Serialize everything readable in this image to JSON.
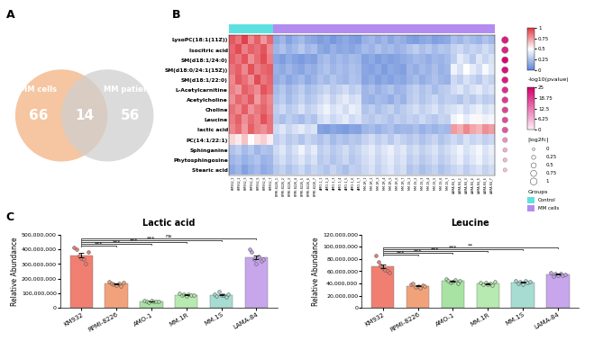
{
  "chart_data": [
    {
      "type": "venn",
      "annotations": [
        "A"
      ],
      "sets": [
        {
          "name": "MM cells",
          "value": 66,
          "color": "#f5c39c"
        },
        {
          "name": "MM patients",
          "value": 56,
          "color": "#cfcfcf"
        }
      ],
      "intersection": 14
    },
    {
      "type": "heatmap",
      "annotations": [
        "B"
      ],
      "rows": [
        "LysoPC(18:1(11Z))",
        "Isocitric acid",
        "SM(d18:1/24:0)",
        "SM(d18:0/24:1(15Z))",
        "SM(d18:1/22:0)",
        "L-Acetylcarnitine",
        "Acetylcholine",
        "Choline",
        "Leucine",
        "lactic acid",
        "PC(14:1/22:1)",
        "Sphinganine",
        "Phytosphingosine",
        "Stearic acid"
      ],
      "columns": [
        "KM932_1",
        "KM932_2",
        "KM932_3",
        "KM932_4",
        "KM932_5",
        "KM932_6",
        "KM932_7",
        "RPMI-8226_1",
        "RPMI-8226_2",
        "RPMI-8226_3",
        "RPMI-8226_4",
        "RPMI-8226_5",
        "RPMI-8226_6",
        "RPMI-8226_7",
        "AMO-1_1",
        "AMO-1_2",
        "AMO-1_3",
        "AMO-1_4",
        "AMO-1_5",
        "AMO-1_6",
        "AMO-1_7",
        "MM.1R_1",
        "MM.1R_2",
        "MM.1R_3",
        "MM.1R_4",
        "MM.1R_5",
        "MM.1R_6",
        "MM.1R_7",
        "MM.1S_1",
        "MM.1S_2",
        "MM.1S_3",
        "MM.1S_4",
        "MM.1S_5",
        "MM.1S_6",
        "MM.1S_7",
        "LAMA-84_1",
        "LAMA-84_2",
        "LAMA-84_3",
        "LAMA-84_4",
        "LAMA-84_5",
        "LAMA-84_6",
        "LAMA-84_7"
      ],
      "cells": [
        [
          0.92,
          0.85,
          0.98,
          0.8,
          0.9,
          0.76,
          0.88,
          0.15,
          0.2,
          0.12,
          0.18,
          0.22,
          0.16,
          0.14,
          0.1,
          0.13,
          0.08,
          0.12,
          0.15,
          0.11,
          0.09,
          0.18,
          0.21,
          0.16,
          0.2,
          0.14,
          0.19,
          0.17,
          0.12,
          0.1,
          0.14,
          0.16,
          0.11,
          0.13,
          0.15,
          0.24,
          0.2,
          0.26,
          0.22,
          0.19,
          0.25,
          0.21
        ],
        [
          0.88,
          0.95,
          0.82,
          0.9,
          0.86,
          0.93,
          0.79,
          0.2,
          0.25,
          0.18,
          0.22,
          0.28,
          0.21,
          0.24,
          0.15,
          0.12,
          0.18,
          0.14,
          0.16,
          0.13,
          0.17,
          0.22,
          0.19,
          0.25,
          0.2,
          0.23,
          0.18,
          0.21,
          0.26,
          0.3,
          0.24,
          0.28,
          0.22,
          0.27,
          0.25,
          0.32,
          0.35,
          0.29,
          0.33,
          0.3,
          0.36,
          0.31
        ],
        [
          0.9,
          0.84,
          0.93,
          0.78,
          0.87,
          0.95,
          0.82,
          0.14,
          0.1,
          0.16,
          0.12,
          0.09,
          0.13,
          0.11,
          0.2,
          0.24,
          0.18,
          0.22,
          0.19,
          0.23,
          0.21,
          0.12,
          0.15,
          0.1,
          0.14,
          0.11,
          0.13,
          0.16,
          0.18,
          0.22,
          0.2,
          0.17,
          0.21,
          0.19,
          0.23,
          0.3,
          0.42,
          0.36,
          0.28,
          0.4,
          0.33,
          0.38
        ],
        [
          0.85,
          0.9,
          0.8,
          0.94,
          0.83,
          0.88,
          0.91,
          0.18,
          0.15,
          0.2,
          0.16,
          0.13,
          0.19,
          0.17,
          0.22,
          0.26,
          0.2,
          0.24,
          0.21,
          0.25,
          0.23,
          0.14,
          0.12,
          0.16,
          0.1,
          0.15,
          0.13,
          0.11,
          0.2,
          0.17,
          0.22,
          0.19,
          0.24,
          0.18,
          0.21,
          0.45,
          0.38,
          0.5,
          0.42,
          0.36,
          0.48,
          0.4
        ],
        [
          0.8,
          0.92,
          0.86,
          0.78,
          0.95,
          0.84,
          0.89,
          0.16,
          0.2,
          0.14,
          0.18,
          0.22,
          0.15,
          0.19,
          0.25,
          0.21,
          0.27,
          0.23,
          0.2,
          0.26,
          0.24,
          0.13,
          0.17,
          0.11,
          0.15,
          0.12,
          0.16,
          0.14,
          0.19,
          0.23,
          0.17,
          0.21,
          0.25,
          0.2,
          0.18,
          0.35,
          0.3,
          0.38,
          0.33,
          0.28,
          0.36,
          0.32
        ],
        [
          0.82,
          0.76,
          0.9,
          0.85,
          0.79,
          0.93,
          0.87,
          0.22,
          0.27,
          0.2,
          0.25,
          0.3,
          0.23,
          0.26,
          0.3,
          0.34,
          0.28,
          0.32,
          0.36,
          0.29,
          0.33,
          0.2,
          0.24,
          0.18,
          0.22,
          0.26,
          0.19,
          0.21,
          0.27,
          0.31,
          0.25,
          0.29,
          0.23,
          0.28,
          0.3,
          0.36,
          0.4,
          0.33,
          0.38,
          0.42,
          0.35,
          0.39
        ],
        [
          0.78,
          0.88,
          0.83,
          0.92,
          0.75,
          0.86,
          0.8,
          0.25,
          0.3,
          0.22,
          0.28,
          0.33,
          0.26,
          0.29,
          0.35,
          0.4,
          0.32,
          0.38,
          0.42,
          0.36,
          0.39,
          0.2,
          0.18,
          0.23,
          0.21,
          0.17,
          0.24,
          0.19,
          0.28,
          0.32,
          0.26,
          0.3,
          0.34,
          0.27,
          0.31,
          0.3,
          0.26,
          0.33,
          0.28,
          0.35,
          0.29,
          0.32
        ],
        [
          0.86,
          0.8,
          0.91,
          0.77,
          0.84,
          0.89,
          0.82,
          0.3,
          0.35,
          0.28,
          0.32,
          0.38,
          0.31,
          0.34,
          0.4,
          0.45,
          0.38,
          0.42,
          0.36,
          0.44,
          0.41,
          0.26,
          0.3,
          0.24,
          0.28,
          0.32,
          0.25,
          0.29,
          0.33,
          0.37,
          0.31,
          0.35,
          0.39,
          0.32,
          0.36,
          0.38,
          0.42,
          0.35,
          0.4,
          0.44,
          0.37,
          0.41
        ],
        [
          0.83,
          0.9,
          0.78,
          0.87,
          0.81,
          0.94,
          0.85,
          0.28,
          0.24,
          0.3,
          0.26,
          0.22,
          0.29,
          0.25,
          0.36,
          0.4,
          0.34,
          0.38,
          0.42,
          0.35,
          0.39,
          0.3,
          0.27,
          0.32,
          0.29,
          0.25,
          0.31,
          0.28,
          0.32,
          0.29,
          0.35,
          0.3,
          0.27,
          0.33,
          0.31,
          0.45,
          0.5,
          0.42,
          0.48,
          0.52,
          0.44,
          0.47
        ],
        [
          0.8,
          0.87,
          0.75,
          0.9,
          0.82,
          0.78,
          0.85,
          0.35,
          0.4,
          0.33,
          0.38,
          0.42,
          0.36,
          0.39,
          0.12,
          0.1,
          0.14,
          0.11,
          0.09,
          0.13,
          0.12,
          0.2,
          0.23,
          0.18,
          0.22,
          0.25,
          0.19,
          0.21,
          0.2,
          0.24,
          0.18,
          0.22,
          0.19,
          0.23,
          0.21,
          0.75,
          0.7,
          0.8,
          0.72,
          0.68,
          0.78,
          0.74
        ],
        [
          0.6,
          0.55,
          0.65,
          0.5,
          0.58,
          0.62,
          0.54,
          0.3,
          0.35,
          0.28,
          0.32,
          0.26,
          0.33,
          0.29,
          0.25,
          0.3,
          0.22,
          0.27,
          0.24,
          0.28,
          0.26,
          0.32,
          0.36,
          0.3,
          0.34,
          0.28,
          0.35,
          0.31,
          0.27,
          0.31,
          0.25,
          0.29,
          0.33,
          0.26,
          0.3,
          0.35,
          0.3,
          0.38,
          0.33,
          0.36,
          0.31,
          0.34
        ],
        [
          0.25,
          0.3,
          0.22,
          0.28,
          0.2,
          0.26,
          0.24,
          0.35,
          0.4,
          0.32,
          0.38,
          0.45,
          0.36,
          0.42,
          0.3,
          0.34,
          0.28,
          0.32,
          0.36,
          0.29,
          0.33,
          0.38,
          0.42,
          0.35,
          0.4,
          0.44,
          0.37,
          0.41,
          0.33,
          0.37,
          0.31,
          0.35,
          0.39,
          0.32,
          0.36,
          0.4,
          0.45,
          0.38,
          0.42,
          0.47,
          0.39,
          0.43
        ],
        [
          0.2,
          0.24,
          0.18,
          0.22,
          0.26,
          0.19,
          0.21,
          0.32,
          0.37,
          0.3,
          0.35,
          0.4,
          0.33,
          0.38,
          0.28,
          0.32,
          0.26,
          0.3,
          0.34,
          0.27,
          0.31,
          0.36,
          0.4,
          0.33,
          0.38,
          0.42,
          0.35,
          0.39,
          0.3,
          0.34,
          0.28,
          0.32,
          0.36,
          0.29,
          0.33,
          0.38,
          0.43,
          0.35,
          0.4,
          0.45,
          0.37,
          0.41
        ],
        [
          0.15,
          0.2,
          0.12,
          0.18,
          0.22,
          0.16,
          0.19,
          0.28,
          0.32,
          0.25,
          0.3,
          0.35,
          0.27,
          0.33,
          0.3,
          0.26,
          0.33,
          0.28,
          0.24,
          0.31,
          0.29,
          0.34,
          0.38,
          0.31,
          0.36,
          0.4,
          0.33,
          0.37,
          0.26,
          0.3,
          0.24,
          0.28,
          0.32,
          0.25,
          0.29,
          0.33,
          0.37,
          0.3,
          0.35,
          0.39,
          0.32,
          0.36
        ]
      ],
      "cell_range": [
        0,
        1
      ],
      "cell_ticks": [
        0,
        0.25,
        0.5,
        0.75,
        1
      ],
      "groups_title": "Groups",
      "groups": [
        {
          "name": "Control",
          "color": "#5fe0e0",
          "count": 7
        },
        {
          "name": "MM cells",
          "color": "#b48cf0",
          "count": 35
        }
      ],
      "pvalue": {
        "title": "-log10(pvalue)",
        "values": [
          22,
          21,
          24,
          23,
          22,
          20,
          19,
          18,
          17,
          16,
          10,
          7,
          6,
          5
        ],
        "range": [
          0,
          25
        ],
        "ticks": [
          0,
          6.25,
          12.5,
          18.75,
          25
        ]
      },
      "fold_change": {
        "title": "|log2fc|",
        "values": [
          1,
          0.95,
          0.9,
          0.9,
          0.85,
          0.8,
          0.8,
          0.75,
          0.7,
          0.7,
          0.45,
          0.3,
          0.25,
          0.2
        ],
        "ticks": [
          0,
          0.25,
          0.5,
          0.75,
          1
        ]
      }
    },
    {
      "type": "bar",
      "annotations": [
        "C"
      ],
      "title": "Lactic acid",
      "ylabel": "Relative Abundance",
      "categories": [
        "KM932",
        "RPMI-8226",
        "AMO-1",
        "MM.1R",
        "MM.1S",
        "LAMA-84"
      ],
      "values": [
        360000000,
        165000000,
        45000000,
        90000000,
        90000000,
        345000000
      ],
      "errors": [
        15000000,
        4000000,
        1500000,
        2500000,
        4000000,
        13000000
      ],
      "points": [
        [
          415000000,
          400000000,
          355000000,
          340000000,
          330000000,
          300000000,
          380000000
        ],
        [
          180000000,
          170000000,
          160000000,
          155000000,
          165000000,
          150000000,
          175000000
        ],
        [
          50000000,
          42000000,
          38000000,
          48000000,
          45000000,
          44000000,
          47000000
        ],
        [
          100000000,
          85000000,
          95000000,
          80000000,
          92000000,
          88000000,
          90000000
        ],
        [
          95000000,
          80000000,
          110000000,
          85000000,
          90000000,
          75000000,
          95000000
        ],
        [
          400000000,
          380000000,
          330000000,
          300000000,
          350000000,
          320000000,
          335000000
        ]
      ],
      "colors": [
        "#f07f72",
        "#f2a27a",
        "#a9e3a4",
        "#b6eab0",
        "#a6dcd2",
        "#c7a6ec"
      ],
      "comparisons": [
        {
          "from": "KM932",
          "to": "RPMI-8226",
          "label": "***"
        },
        {
          "from": "KM932",
          "to": "AMO-1",
          "label": "***"
        },
        {
          "from": "KM932",
          "to": "MM.1R",
          "label": "***"
        },
        {
          "from": "KM932",
          "to": "MM.1S",
          "label": "***"
        },
        {
          "from": "KM932",
          "to": "LAMA-84",
          "label": "ns"
        }
      ],
      "ylim": [
        0,
        500000000
      ],
      "yticks": [
        0,
        {
          "value": 100000000,
          "label": "100,000,000"
        },
        {
          "value": 200000000,
          "label": "200,000,000"
        },
        {
          "value": 300000000,
          "label": "300,000,000"
        },
        {
          "value": 400000000,
          "label": "400,000,000"
        },
        {
          "value": 500000000,
          "label": "500,000,000"
        }
      ]
    },
    {
      "type": "bar",
      "title": "Leucine",
      "ylabel": "Relative Abundance",
      "categories": [
        "KM932",
        "RPMI-8226",
        "AMO-1",
        "MM.1R",
        "MM.1S",
        "LAMA-84"
      ],
      "values": [
        68000000,
        36000000,
        44000000,
        40000000,
        42000000,
        55000000
      ],
      "errors": [
        3500000,
        1000000,
        1000000,
        800000,
        900000,
        800000
      ],
      "points": [
        [
          85000000,
          75000000,
          70000000,
          65000000,
          62000000,
          60000000,
          58000000
        ],
        [
          38000000,
          40000000,
          34000000,
          35000000,
          33000000,
          37000000,
          36000000
        ],
        [
          48000000,
          45000000,
          42000000,
          43000000,
          46000000,
          40000000,
          44000000
        ],
        [
          42000000,
          38000000,
          41000000,
          39000000,
          40000000,
          37000000,
          43000000
        ],
        [
          45000000,
          40000000,
          43000000,
          38000000,
          44000000,
          41000000,
          43000000
        ],
        [
          58000000,
          52000000,
          56000000,
          54000000,
          57000000,
          53000000,
          55000000
        ]
      ],
      "colors": [
        "#f07f72",
        "#f2a27a",
        "#a9e3a4",
        "#b6eab0",
        "#a6dcd2",
        "#c7a6ec"
      ],
      "comparisons": [
        {
          "from": "KM932",
          "to": "RPMI-8226",
          "label": "***"
        },
        {
          "from": "KM932",
          "to": "AMO-1",
          "label": "***"
        },
        {
          "from": "KM932",
          "to": "MM.1R",
          "label": "***"
        },
        {
          "from": "KM932",
          "to": "MM.1S",
          "label": "***"
        },
        {
          "from": "KM932",
          "to": "LAMA-84",
          "label": "**"
        }
      ],
      "ylim": [
        0,
        120000000
      ],
      "yticks": [
        0,
        {
          "value": 20000000,
          "label": "20,000,000"
        },
        {
          "value": 40000000,
          "label": "40,000,000"
        },
        {
          "value": 60000000,
          "label": "60,000,000"
        },
        {
          "value": 80000000,
          "label": "80,000,000"
        },
        {
          "value": 100000000,
          "label": "100,000,000"
        },
        {
          "value": 120000000,
          "label": "120,000,000"
        }
      ]
    }
  ]
}
